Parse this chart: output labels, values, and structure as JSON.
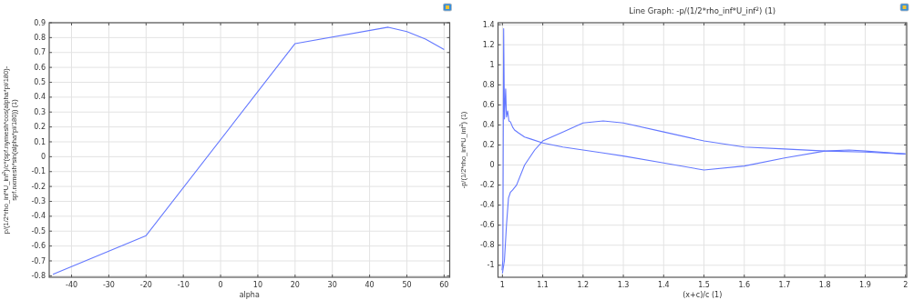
{
  "chart_data": [
    {
      "type": "line",
      "xlabel": "alpha",
      "ylabel": "p/(1/2*rho_inf*U_inf$^{2}$)/c*(spf.nymesh*cos(alpha*pi/180)-spf.nxmesh*sin(alpha*pi/180)) (1)",
      "xlim": [
        -46,
        61.5
      ],
      "ylim": [
        -0.81,
        0.9
      ],
      "xticks": [
        -40,
        -30,
        -20,
        -10,
        0,
        10,
        20,
        30,
        40,
        50,
        60
      ],
      "yticks": [
        -0.8,
        -0.7,
        -0.6,
        -0.5,
        -0.4,
        -0.3,
        -0.2,
        -0.1,
        0,
        0.1,
        0.2,
        0.3,
        0.4,
        0.5,
        0.6,
        0.7,
        0.8,
        0.9
      ],
      "grid": true,
      "series": [
        {
          "color": "#6478ff",
          "x": [
            -45,
            -20,
            20,
            45,
            50,
            55,
            60
          ],
          "values": [
            -0.79,
            -0.53,
            0.76,
            0.87,
            0.84,
            0.79,
            0.72
          ]
        }
      ]
    },
    {
      "type": "line",
      "title": "Line Graph: -p/(1/2*rho_inf*U_inf$^{2}$) (1)",
      "xlabel": "(x+c)/c (1)",
      "ylabel": "-p/(1/2*rho_inf*U_inf$^{2}$) (1)",
      "xlim": [
        0.989,
        2.003
      ],
      "ylim": [
        -1.12,
        1.42
      ],
      "xticks": [
        1,
        1.1,
        1.2,
        1.3,
        1.4,
        1.5,
        1.6,
        1.7,
        1.8,
        1.9,
        2
      ],
      "yticks": [
        -1,
        -0.8,
        -0.6,
        -0.4,
        -0.2,
        0,
        0.2,
        0.4,
        0.6,
        0.8,
        1,
        1.2,
        1.4
      ],
      "grid": true,
      "series": [
        {
          "color": "#6478ff",
          "x": [
            1.0,
            1.005,
            1.01,
            1.015,
            1.02,
            1.025,
            1.035,
            1.055,
            1.08,
            1.1,
            1.15,
            1.2,
            1.25,
            1.3,
            1.4,
            1.5,
            1.6,
            1.7,
            1.8,
            1.9,
            2
          ],
          "values": [
            -1.08,
            -0.95,
            -0.6,
            -0.33,
            -0.27,
            -0.25,
            -0.2,
            0,
            0.15,
            0.24,
            0.33,
            0.42,
            0.44,
            0.42,
            0.33,
            0.24,
            0.18,
            0.16,
            0.14,
            0.13,
            0.11
          ]
        },
        {
          "color": "#6478ff",
          "x": [
            0.999,
            1.001,
            1.003,
            1.005,
            1.008,
            1.01,
            1.013,
            1.016,
            1.02,
            1.025,
            1.03,
            1.04,
            1.055,
            1.07,
            1.1,
            1.15,
            1.2,
            1.25,
            1.3,
            1.4,
            1.5,
            1.6,
            1.7,
            1.8,
            1.86,
            1.9,
            2
          ],
          "values": [
            -1.05,
            -0.95,
            1.36,
            0.46,
            0.76,
            0.48,
            0.54,
            0.44,
            0.43,
            0.38,
            0.35,
            0.32,
            0.28,
            0.26,
            0.22,
            0.18,
            0.15,
            0.12,
            0.09,
            0.02,
            -0.05,
            -0.01,
            0.07,
            0.14,
            0.15,
            0.14,
            0.11
          ]
        }
      ]
    }
  ]
}
